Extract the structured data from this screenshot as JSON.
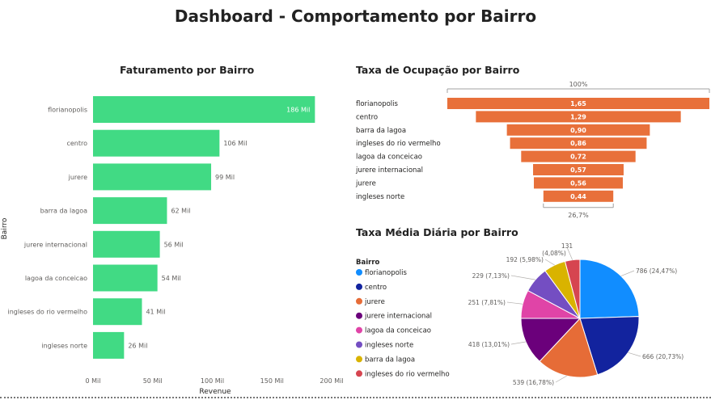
{
  "page": {
    "title": "Dashboard - Comportamento por Bairro"
  },
  "chart_data": [
    {
      "type": "bar",
      "orientation": "horizontal",
      "title": "Faturamento por Bairro",
      "xlabel": "Revenue",
      "ylabel": "Bairro",
      "xlim": [
        0,
        200
      ],
      "xticks": [
        "0 Mil",
        "50 Mil",
        "100 Mil",
        "150 Mil",
        "200 Mil"
      ],
      "grid": false,
      "color": "#41DA84",
      "categories": [
        "florianopolis",
        "centro",
        "jurere",
        "barra da lagoa",
        "jurere internacional",
        "lagoa da conceicao",
        "ingleses do rio vermelho",
        "ingleses norte"
      ],
      "values": [
        186,
        106,
        99,
        62,
        56,
        54,
        41,
        26
      ],
      "labels": [
        "186 Mil",
        "106 Mil",
        "99 Mil",
        "62 Mil",
        "56 Mil",
        "54 Mil",
        "41 Mil",
        "26 Mil"
      ]
    },
    {
      "type": "funnel",
      "title": "Taxa de Ocupação por Bairro",
      "color": "#E8703A",
      "top_label": "100%",
      "bottom_label": "26,7%",
      "categories": [
        "florianopolis",
        "centro",
        "barra da lagoa",
        "ingleses do rio vermelho",
        "lagoa da conceicao",
        "jurere internacional",
        "jurere",
        "ingleses norte"
      ],
      "values": [
        1.65,
        1.29,
        0.9,
        0.86,
        0.72,
        0.57,
        0.56,
        0.44
      ],
      "labels": [
        "1,65",
        "1,29",
        "0,90",
        "0,86",
        "0,72",
        "0,57",
        "0,56",
        "0,44"
      ]
    },
    {
      "type": "pie",
      "title": "Taxa Média Diária por Bairro",
      "legend_title": "Bairro",
      "legend_position": "left",
      "categories": [
        "florianopolis",
        "centro",
        "jurere",
        "jurere internacional",
        "lagoa da conceicao",
        "ingleses norte",
        "barra da lagoa",
        "ingleses do rio vermelho"
      ],
      "values": [
        786,
        666,
        539,
        418,
        251,
        229,
        192,
        131
      ],
      "labels": [
        "786 (24,47%)",
        "666 (20,73%)",
        "539 (16,78%)",
        "418 (13,01%)",
        "251 (7,81%)",
        "229 (7,13%)",
        "192 (5,98%)",
        "131 (4,08%)"
      ],
      "colors": [
        "#118DFF",
        "#12239E",
        "#E66C37",
        "#6B007B",
        "#E044A7",
        "#744EC2",
        "#D9B300",
        "#D64550"
      ]
    }
  ]
}
